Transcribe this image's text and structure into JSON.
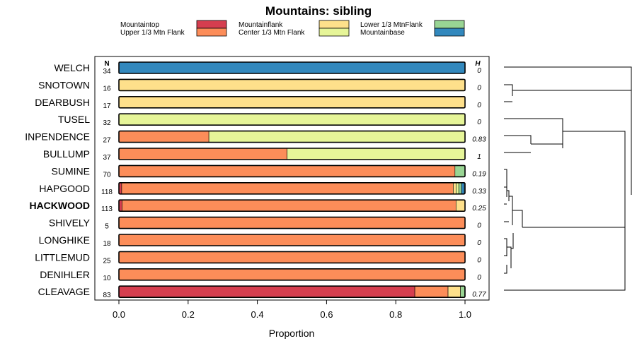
{
  "chart_data": {
    "type": "stacked-bar-horizontal",
    "title": "Mountains: sibling",
    "xlabel": "Proportion",
    "xlim": [
      0,
      1
    ],
    "x_ticks": [
      0,
      0.2,
      0.4,
      0.6,
      0.8,
      1
    ],
    "x_tick_labels": [
      "0.0",
      "0.2",
      "0.4",
      "0.6",
      "0.8",
      "1.0"
    ],
    "n_header": "N",
    "h_header": "H",
    "categories": [
      {
        "name": "Mountaintop",
        "color": "#d53e4f"
      },
      {
        "name": "Upper 1/3 Mtn Flank",
        "color": "#fc8d59"
      },
      {
        "name": "Mountainflank",
        "color": "#fee08b"
      },
      {
        "name": "Center 1/3 Mtn Flank",
        "color": "#e6f598"
      },
      {
        "name": "Lower 1/3 MtnFlank",
        "color": "#99d594"
      },
      {
        "name": "Mountainbase",
        "color": "#3288bd"
      }
    ],
    "rows": [
      {
        "label": "WELCH",
        "n": "34",
        "h": "0",
        "bold": false,
        "values": [
          0,
          0,
          0,
          0,
          0,
          1
        ]
      },
      {
        "label": "SNOTOWN",
        "n": "16",
        "h": "0",
        "bold": false,
        "values": [
          0,
          0,
          1,
          0,
          0,
          0
        ]
      },
      {
        "label": "DEARBUSH",
        "n": "17",
        "h": "0",
        "bold": false,
        "values": [
          0,
          0,
          1,
          0,
          0,
          0
        ]
      },
      {
        "label": "TUSEL",
        "n": "32",
        "h": "0",
        "bold": false,
        "values": [
          0,
          0,
          0,
          1,
          0,
          0
        ]
      },
      {
        "label": "INPENDENCE",
        "n": "27",
        "h": "0.83",
        "bold": false,
        "values": [
          0,
          0.26,
          0,
          0.74,
          0,
          0
        ]
      },
      {
        "label": "BULLUMP",
        "n": "37",
        "h": "1",
        "bold": false,
        "values": [
          0,
          0.486,
          0,
          0.514,
          0,
          0
        ]
      },
      {
        "label": "SUMINE",
        "n": "70",
        "h": "0.19",
        "bold": false,
        "values": [
          0,
          0.971,
          0,
          0,
          0.029,
          0
        ]
      },
      {
        "label": "HAPGOOD",
        "n": "118",
        "h": "0.33",
        "bold": false,
        "values": [
          0.008,
          0.958,
          0.008,
          0.008,
          0.008,
          0.008
        ]
      },
      {
        "label": "HACKWOOD",
        "n": "113",
        "h": "0.25",
        "bold": true,
        "values": [
          0.009,
          0.965,
          0.026,
          0,
          0,
          0
        ]
      },
      {
        "label": "SHIVELY",
        "n": "5",
        "h": "0",
        "bold": false,
        "values": [
          0,
          1,
          0,
          0,
          0,
          0
        ]
      },
      {
        "label": "LONGHIKE",
        "n": "18",
        "h": "0",
        "bold": false,
        "values": [
          0,
          1,
          0,
          0,
          0,
          0
        ]
      },
      {
        "label": "LITTLEMUD",
        "n": "25",
        "h": "0",
        "bold": false,
        "values": [
          0,
          1,
          0,
          0,
          0,
          0
        ]
      },
      {
        "label": "DENIHLER",
        "n": "10",
        "h": "0",
        "bold": false,
        "values": [
          0,
          1,
          0,
          0,
          0,
          0
        ]
      },
      {
        "label": "CLEAVAGE",
        "n": "83",
        "h": "0.77",
        "bold": false,
        "values": [
          0.855,
          0.096,
          0.036,
          0,
          0.012,
          0
        ]
      }
    ]
  }
}
